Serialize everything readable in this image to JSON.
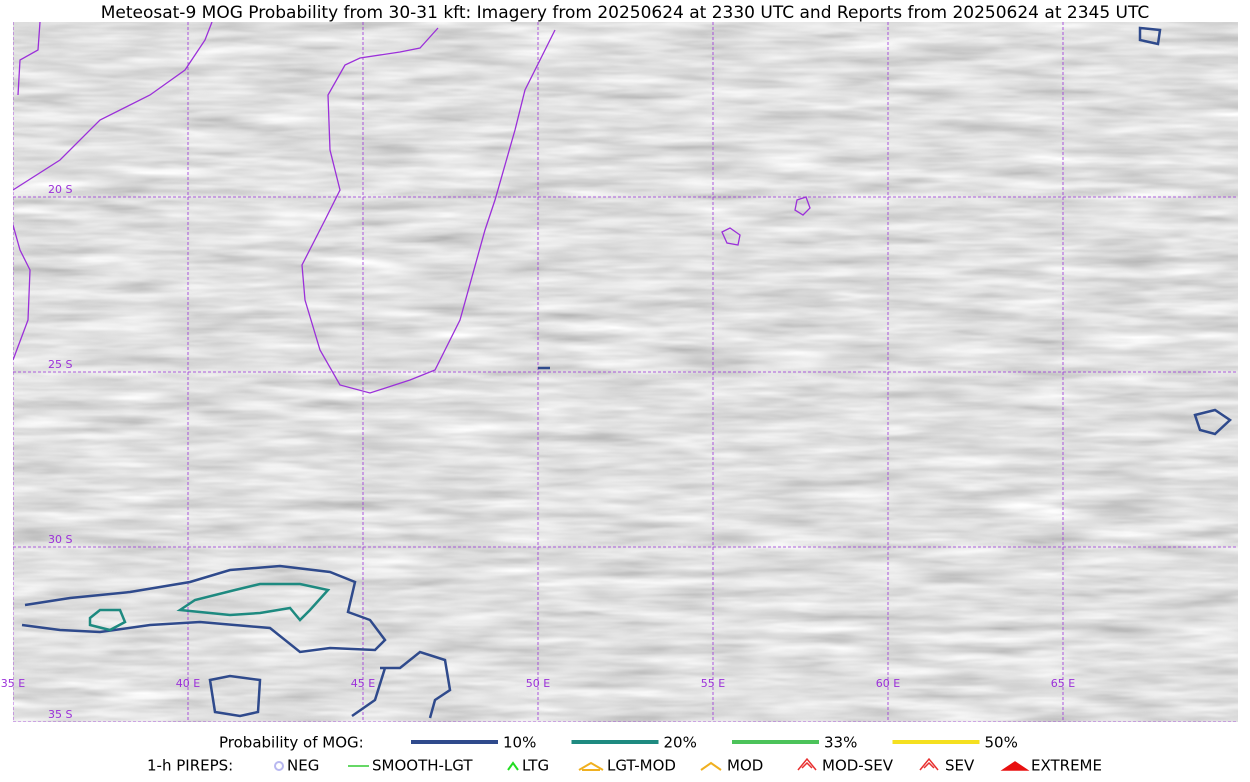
{
  "title": "Meteosat-9 MOG Probability from 30-31 kft: Imagery from 20250624 at 2330 UTC and Reports from 20250624 at 2345 UTC",
  "lat_labels": [
    "20 S",
    "25 S",
    "30 S",
    "35 S"
  ],
  "lon_labels": [
    "35 E",
    "40 E",
    "45 E",
    "50 E",
    "55 E",
    "60 E",
    "65 E"
  ],
  "legend": {
    "probability": {
      "label": "Probability of MOG:",
      "items": [
        {
          "name": "10%",
          "color": "#2f4a8c"
        },
        {
          "name": "20%",
          "color": "#1e8a80"
        },
        {
          "name": "33%",
          "color": "#4cc35a"
        },
        {
          "name": "50%",
          "color": "#f5e020"
        }
      ]
    },
    "pireps": {
      "label": "1-h PIREPS:",
      "items": [
        {
          "name": "NEG",
          "color": "#b8b8f0"
        },
        {
          "name": "SMOOTH-LGT",
          "color": "#33cc33"
        },
        {
          "name": "LTG",
          "color": "#22dd22"
        },
        {
          "name": "LGT-MOD",
          "color": "#f0b020"
        },
        {
          "name": "MOD",
          "color": "#f0b020"
        },
        {
          "name": "MOD-SEV",
          "color": "#e83030"
        },
        {
          "name": "SEV",
          "color": "#e83030"
        },
        {
          "name": "EXTREME",
          "color": "#e81010"
        }
      ]
    }
  }
}
